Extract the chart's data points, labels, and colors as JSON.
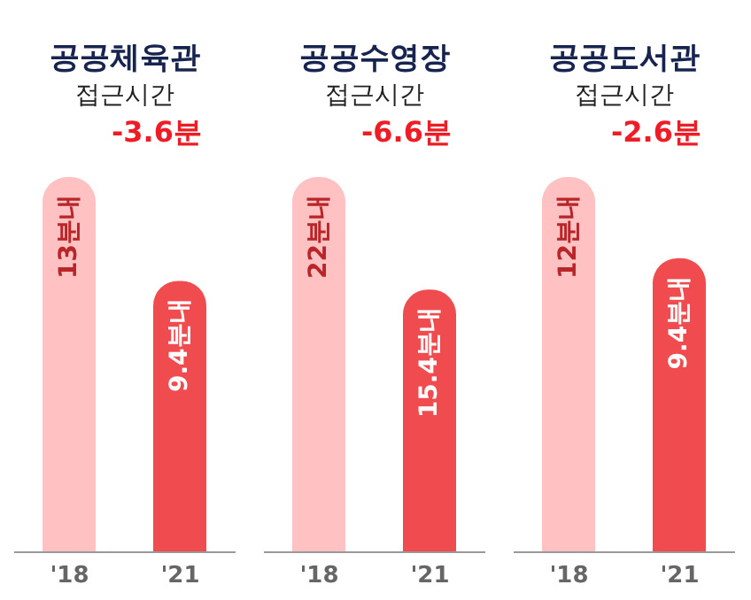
{
  "chart_data": [
    {
      "type": "bar",
      "title": "공공체육관",
      "subtitle": "접근시간",
      "annotations": [
        "-3.6분"
      ],
      "categories": [
        "'18",
        "'21"
      ],
      "values": [
        13,
        9.4
      ],
      "value_labels": [
        "13분내",
        "9.4분내"
      ],
      "colors": [
        "#ffc1c1",
        "#f04b4e"
      ]
    },
    {
      "type": "bar",
      "title": "공공수영장",
      "subtitle": "접근시간",
      "annotations": [
        "-6.6분"
      ],
      "categories": [
        "'18",
        "'21"
      ],
      "values": [
        22,
        15.4
      ],
      "value_labels": [
        "22분내",
        "15.4분내"
      ],
      "colors": [
        "#ffc1c1",
        "#f04b4e"
      ]
    },
    {
      "type": "bar",
      "title": "공공도서관",
      "subtitle": "접근시간",
      "annotations": [
        "-2.6분"
      ],
      "categories": [
        "'18",
        "'21"
      ],
      "values": [
        12,
        9.4
      ],
      "value_labels": [
        "12분내",
        "9.4분내"
      ],
      "colors": [
        "#ffc1c1",
        "#f04b4e"
      ]
    }
  ]
}
